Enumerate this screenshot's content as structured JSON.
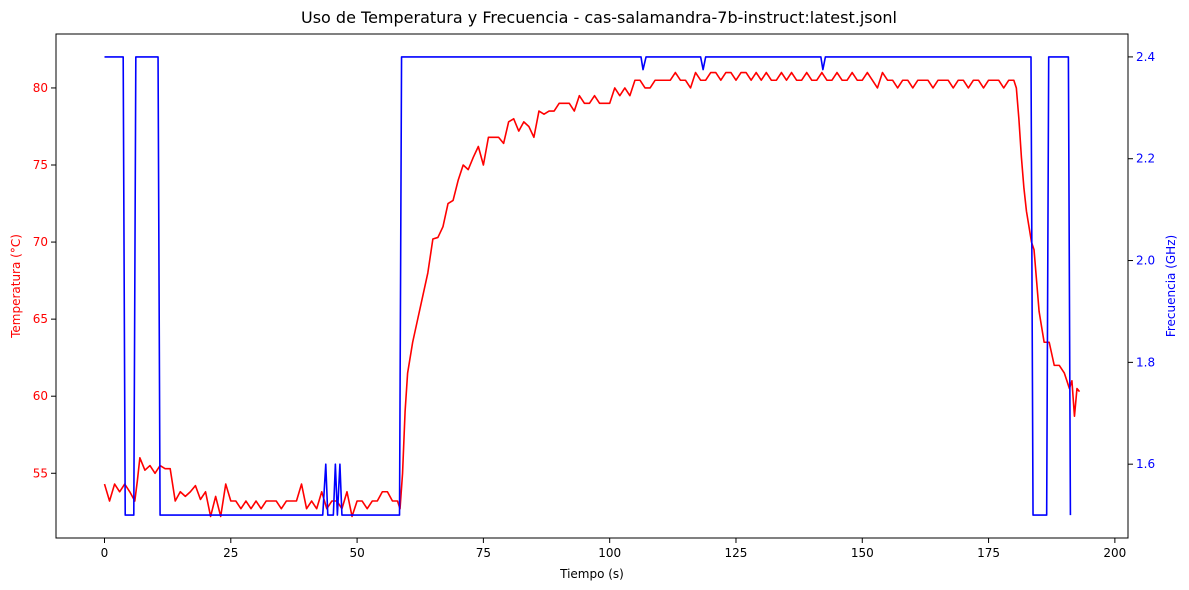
{
  "chart_data": {
    "type": "line",
    "title": "Uso de Temperatura y Frecuencia - cas-salamandra-7b-instruct:latest.jsonl",
    "xlabel": "Tiempo (s)",
    "ylabel_left": "Temperatura (°C)",
    "ylabel_right": "Frecuencia (GHz)",
    "xlim": [
      -9.6,
      202.6
    ],
    "ylim_left": [
      50.8,
      83.5
    ],
    "ylim_right": [
      1.455,
      2.445
    ],
    "x_ticks": [
      0,
      25,
      50,
      75,
      100,
      125,
      150,
      175,
      200
    ],
    "x_tick_labels": [
      "0",
      "25",
      "50",
      "75",
      "100",
      "125",
      "150",
      "175",
      "200"
    ],
    "y_left_ticks": [
      55,
      60,
      65,
      70,
      75,
      80
    ],
    "y_left_tick_labels": [
      "55",
      "60",
      "65",
      "70",
      "75",
      "80"
    ],
    "y_right_ticks": [
      1.6,
      1.8,
      2.0,
      2.2,
      2.4
    ],
    "y_right_tick_labels": [
      "1.6",
      "1.8",
      "2.0",
      "2.2",
      "2.4"
    ],
    "grid": false,
    "series": [
      {
        "axis": "left",
        "color": "#ff0000",
        "points": [
          [
            0,
            54.3
          ],
          [
            1,
            53.2
          ],
          [
            2,
            54.3
          ],
          [
            3,
            53.8
          ],
          [
            4,
            54.3
          ],
          [
            5,
            53.8
          ],
          [
            6,
            53.2
          ],
          [
            6.5,
            54.5
          ],
          [
            7,
            56.0
          ],
          [
            8,
            55.2
          ],
          [
            9,
            55.5
          ],
          [
            10,
            55.0
          ],
          [
            11,
            55.5
          ],
          [
            12,
            55.3
          ],
          [
            13,
            55.3
          ],
          [
            14,
            53.2
          ],
          [
            15,
            53.8
          ],
          [
            16,
            53.5
          ],
          [
            17,
            53.8
          ],
          [
            18,
            54.2
          ],
          [
            19,
            53.3
          ],
          [
            20,
            53.8
          ],
          [
            21,
            52.2
          ],
          [
            22,
            53.5
          ],
          [
            23,
            52.2
          ],
          [
            24,
            54.3
          ],
          [
            25,
            53.2
          ],
          [
            26,
            53.2
          ],
          [
            27,
            52.7
          ],
          [
            28,
            53.2
          ],
          [
            29,
            52.7
          ],
          [
            30,
            53.2
          ],
          [
            31,
            52.7
          ],
          [
            32,
            53.2
          ],
          [
            33,
            53.2
          ],
          [
            34,
            53.2
          ],
          [
            35,
            52.7
          ],
          [
            36,
            53.2
          ],
          [
            37,
            53.2
          ],
          [
            38,
            53.2
          ],
          [
            39,
            54.3
          ],
          [
            40,
            52.7
          ],
          [
            41,
            53.2
          ],
          [
            42,
            52.7
          ],
          [
            43,
            53.8
          ],
          [
            44,
            52.7
          ],
          [
            45,
            53.2
          ],
          [
            46,
            53.2
          ],
          [
            47,
            52.7
          ],
          [
            48,
            53.8
          ],
          [
            49,
            52.2
          ],
          [
            50,
            53.2
          ],
          [
            51,
            53.2
          ],
          [
            52,
            52.7
          ],
          [
            53,
            53.2
          ],
          [
            54,
            53.2
          ],
          [
            55,
            53.8
          ],
          [
            56,
            53.8
          ],
          [
            57,
            53.2
          ],
          [
            58,
            53.2
          ],
          [
            58.5,
            52.7
          ],
          [
            59,
            55.0
          ],
          [
            59.5,
            59.0
          ],
          [
            60,
            61.5
          ],
          [
            61,
            63.5
          ],
          [
            62,
            65.0
          ],
          [
            63,
            66.5
          ],
          [
            64,
            68.0
          ],
          [
            65,
            70.2
          ],
          [
            66,
            70.3
          ],
          [
            67,
            71.0
          ],
          [
            68,
            72.5
          ],
          [
            69,
            72.7
          ],
          [
            70,
            74.0
          ],
          [
            71,
            75.0
          ],
          [
            72,
            74.7
          ],
          [
            73,
            75.5
          ],
          [
            74,
            76.2
          ],
          [
            75,
            75.0
          ],
          [
            76,
            76.8
          ],
          [
            77,
            76.8
          ],
          [
            78,
            76.8
          ],
          [
            79,
            76.4
          ],
          [
            80,
            77.8
          ],
          [
            81,
            78.0
          ],
          [
            82,
            77.2
          ],
          [
            83,
            77.8
          ],
          [
            84,
            77.5
          ],
          [
            85,
            76.8
          ],
          [
            86,
            78.5
          ],
          [
            87,
            78.3
          ],
          [
            88,
            78.5
          ],
          [
            89,
            78.5
          ],
          [
            90,
            79.0
          ],
          [
            91,
            79.0
          ],
          [
            92,
            79.0
          ],
          [
            93,
            78.5
          ],
          [
            94,
            79.5
          ],
          [
            95,
            79.0
          ],
          [
            96,
            79.0
          ],
          [
            97,
            79.5
          ],
          [
            98,
            79.0
          ],
          [
            99,
            79.0
          ],
          [
            100,
            79.0
          ],
          [
            101,
            80.0
          ],
          [
            102,
            79.5
          ],
          [
            103,
            80.0
          ],
          [
            104,
            79.5
          ],
          [
            105,
            80.5
          ],
          [
            106,
            80.5
          ],
          [
            107,
            80.0
          ],
          [
            108,
            80.0
          ],
          [
            109,
            80.5
          ],
          [
            110,
            80.5
          ],
          [
            111,
            80.5
          ],
          [
            112,
            80.5
          ],
          [
            113,
            81.0
          ],
          [
            114,
            80.5
          ],
          [
            115,
            80.5
          ],
          [
            116,
            80.0
          ],
          [
            117,
            81.0
          ],
          [
            118,
            80.5
          ],
          [
            119,
            80.5
          ],
          [
            120,
            81.0
          ],
          [
            121,
            81.0
          ],
          [
            122,
            80.5
          ],
          [
            123,
            81.0
          ],
          [
            124,
            81.0
          ],
          [
            125,
            80.5
          ],
          [
            126,
            81.0
          ],
          [
            127,
            81.0
          ],
          [
            128,
            80.5
          ],
          [
            129,
            81.0
          ],
          [
            130,
            80.5
          ],
          [
            131,
            81.0
          ],
          [
            132,
            80.5
          ],
          [
            133,
            80.5
          ],
          [
            134,
            81.0
          ],
          [
            135,
            80.5
          ],
          [
            136,
            81.0
          ],
          [
            137,
            80.5
          ],
          [
            138,
            80.5
          ],
          [
            139,
            81.0
          ],
          [
            140,
            80.5
          ],
          [
            141,
            80.5
          ],
          [
            142,
            81.0
          ],
          [
            143,
            80.5
          ],
          [
            144,
            80.5
          ],
          [
            145,
            81.0
          ],
          [
            146,
            80.5
          ],
          [
            147,
            80.5
          ],
          [
            148,
            81.0
          ],
          [
            149,
            80.5
          ],
          [
            150,
            80.5
          ],
          [
            151,
            81.0
          ],
          [
            152,
            80.5
          ],
          [
            153,
            80.0
          ],
          [
            154,
            81.0
          ],
          [
            155,
            80.5
          ],
          [
            156,
            80.5
          ],
          [
            157,
            80.0
          ],
          [
            158,
            80.5
          ],
          [
            159,
            80.5
          ],
          [
            160,
            80.0
          ],
          [
            161,
            80.5
          ],
          [
            162,
            80.5
          ],
          [
            163,
            80.5
          ],
          [
            164,
            80.0
          ],
          [
            165,
            80.5
          ],
          [
            166,
            80.5
          ],
          [
            167,
            80.5
          ],
          [
            168,
            80.0
          ],
          [
            169,
            80.5
          ],
          [
            170,
            80.5
          ],
          [
            171,
            80.0
          ],
          [
            172,
            80.5
          ],
          [
            173,
            80.5
          ],
          [
            174,
            80.0
          ],
          [
            175,
            80.5
          ],
          [
            176,
            80.5
          ],
          [
            177,
            80.5
          ],
          [
            178,
            80.0
          ],
          [
            179,
            80.5
          ],
          [
            180,
            80.5
          ],
          [
            180.5,
            80.0
          ],
          [
            181,
            78.0
          ],
          [
            181.5,
            75.5
          ],
          [
            182,
            73.5
          ],
          [
            182.5,
            72.0
          ],
          [
            183,
            71.0
          ],
          [
            183.5,
            70.0
          ],
          [
            184,
            69.5
          ],
          [
            184.5,
            67.5
          ],
          [
            185,
            65.5
          ],
          [
            185.5,
            64.5
          ],
          [
            186,
            63.5
          ],
          [
            187,
            63.5
          ],
          [
            188,
            62.0
          ],
          [
            189,
            62.0
          ],
          [
            190,
            61.5
          ],
          [
            191,
            60.5
          ],
          [
            191.5,
            61.0
          ],
          [
            192,
            58.7
          ],
          [
            192.5,
            60.5
          ],
          [
            193,
            60.3
          ]
        ]
      },
      {
        "axis": "right",
        "color": "#0000ff",
        "points": [
          [
            0,
            2.4
          ],
          [
            3.7,
            2.4
          ],
          [
            4.1,
            1.5
          ],
          [
            5.8,
            1.5
          ],
          [
            6.2,
            2.4
          ],
          [
            10.6,
            2.4
          ],
          [
            11.0,
            1.5
          ],
          [
            43.2,
            1.5
          ],
          [
            43.8,
            1.6
          ],
          [
            44.2,
            1.5
          ],
          [
            45.3,
            1.5
          ],
          [
            45.7,
            1.6
          ],
          [
            46.1,
            1.5
          ],
          [
            46.6,
            1.6
          ],
          [
            47.0,
            1.5
          ],
          [
            58.4,
            1.5
          ],
          [
            58.8,
            2.4
          ],
          [
            106.2,
            2.4
          ],
          [
            106.6,
            2.375
          ],
          [
            107.2,
            2.4
          ],
          [
            118.0,
            2.4
          ],
          [
            118.5,
            2.375
          ],
          [
            119.0,
            2.4
          ],
          [
            141.8,
            2.4
          ],
          [
            142.2,
            2.375
          ],
          [
            142.7,
            2.4
          ],
          [
            183.4,
            2.4
          ],
          [
            183.8,
            1.5
          ],
          [
            186.5,
            1.5
          ],
          [
            186.9,
            2.4
          ],
          [
            190.8,
            2.4
          ],
          [
            191.2,
            1.5
          ]
        ]
      }
    ]
  }
}
